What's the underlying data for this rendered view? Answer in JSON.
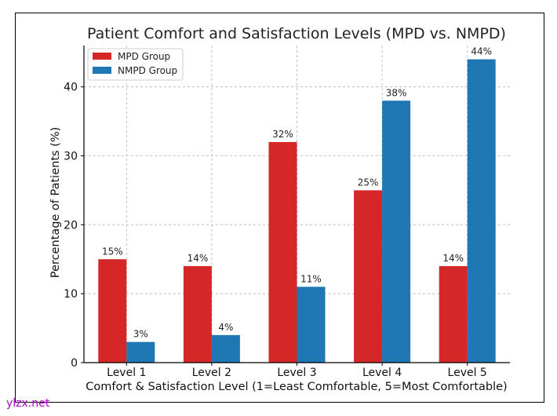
{
  "watermark": "ylzx.net",
  "chart_data": {
    "type": "bar",
    "title": "Patient Comfort and Satisfaction Levels (MPD vs. NMPD)",
    "xlabel": "Comfort & Satisfaction Level (1=Least Comfortable, 5=Most Comfortable)",
    "ylabel": "Percentage of Patients (%)",
    "categories": [
      "Level 1",
      "Level 2",
      "Level 3",
      "Level 4",
      "Level 5"
    ],
    "ylim": [
      0,
      46
    ],
    "yticks": [
      0,
      10,
      20,
      30,
      40
    ],
    "grid": true,
    "legend_position": "top-left",
    "series": [
      {
        "name": "MPD Group",
        "color": "#d62728",
        "values": [
          15,
          14,
          32,
          25,
          14
        ],
        "labels": [
          "15%",
          "14%",
          "32%",
          "25%",
          "14%"
        ]
      },
      {
        "name": "NMPD Group",
        "color": "#1f77b4",
        "values": [
          3,
          4,
          11,
          38,
          44
        ],
        "labels": [
          "3%",
          "4%",
          "11%",
          "38%",
          "44%"
        ]
      }
    ]
  }
}
